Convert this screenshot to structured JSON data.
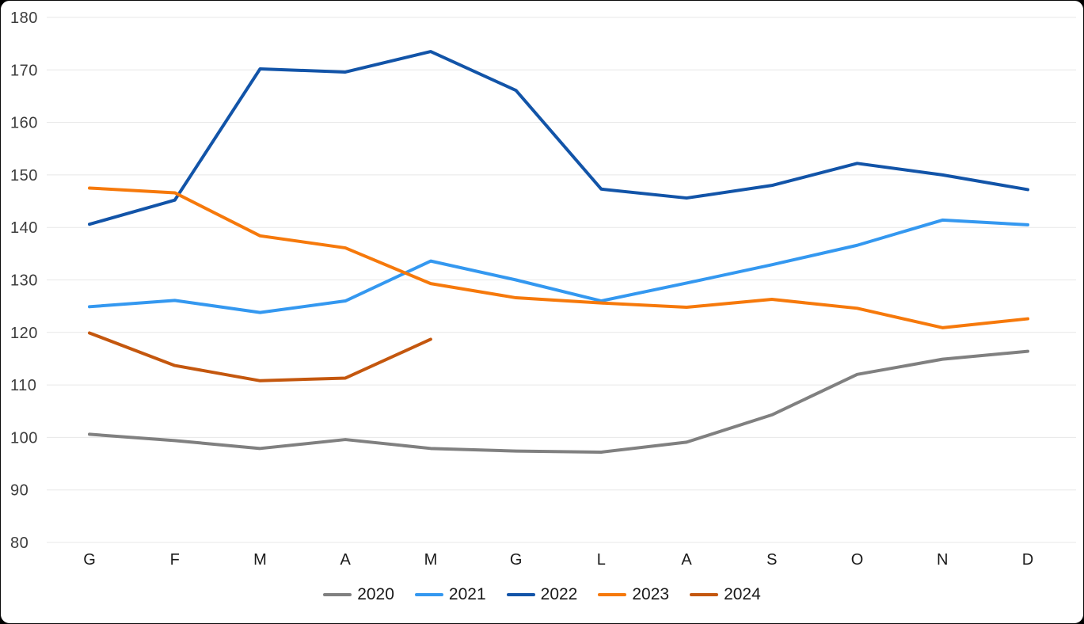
{
  "chart_data": {
    "type": "line",
    "title": "",
    "xlabel": "",
    "ylabel": "",
    "x_categories": [
      "G",
      "F",
      "M",
      "A",
      "M",
      "G",
      "L",
      "A",
      "S",
      "O",
      "N",
      "D"
    ],
    "y_ticks": [
      80,
      90,
      100,
      110,
      120,
      130,
      140,
      150,
      160,
      170,
      180
    ],
    "ylim": [
      80,
      180
    ],
    "grid": "horizontal",
    "gridline_color": "#e7e7e7",
    "legend_position": "bottom",
    "series": [
      {
        "name": "2020",
        "color": "#808080",
        "values": [
          100.6,
          99.4,
          97.9,
          99.6,
          97.9,
          97.4,
          97.2,
          99.1,
          104.3,
          112.0,
          114.9,
          116.4
        ]
      },
      {
        "name": "2021",
        "color": "#3498f0",
        "values": [
          124.9,
          126.1,
          123.8,
          126.0,
          133.6,
          130.0,
          126.0,
          129.4,
          132.9,
          136.6,
          141.4,
          140.5
        ]
      },
      {
        "name": "2022",
        "color": "#1254a8",
        "values": [
          140.6,
          145.2,
          170.2,
          169.6,
          173.5,
          166.1,
          147.3,
          145.6,
          148.0,
          152.2,
          150.0,
          147.2
        ]
      },
      {
        "name": "2023",
        "color": "#f6790b",
        "values": [
          147.5,
          146.6,
          138.4,
          136.1,
          129.3,
          126.6,
          125.6,
          124.8,
          126.3,
          124.6,
          120.9,
          122.6
        ]
      },
      {
        "name": "2024",
        "color": "#c4570e",
        "values": [
          119.9,
          113.7,
          110.8,
          111.3,
          118.7
        ]
      }
    ]
  }
}
